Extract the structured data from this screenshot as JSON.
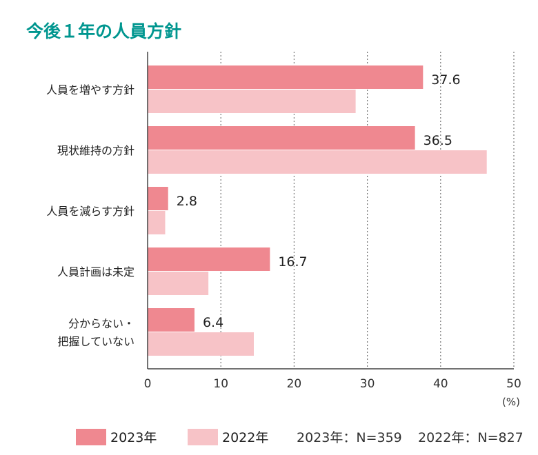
{
  "title": "今後１年の人員方針",
  "chart_data": {
    "type": "bar",
    "orientation": "horizontal",
    "title": "今後１年の人員方針",
    "categories": [
      "人員を増やす方針",
      "現状維持の方針",
      "人員を減らす方針",
      "人員計画は未定",
      "分からない・\n把握していない"
    ],
    "series": [
      {
        "name": "2023年",
        "color": "#ef8890",
        "values": [
          37.6,
          36.5,
          2.8,
          16.7,
          6.4
        ],
        "labels": [
          "37.6",
          "36.5",
          "2.8",
          "16.7",
          "6.4"
        ]
      },
      {
        "name": "2022年",
        "color": "#f7c3c7",
        "values": [
          28.4,
          46.3,
          2.4,
          8.3,
          14.5
        ]
      }
    ],
    "xlim": [
      0,
      50
    ],
    "xticks": [
      "0",
      "10",
      "20",
      "30",
      "40",
      "50"
    ],
    "xunit": "(%)",
    "grid": "vertical dotted",
    "legend": "bottom",
    "notes": [
      "2023年：N=359",
      "2022年：N=827"
    ]
  }
}
